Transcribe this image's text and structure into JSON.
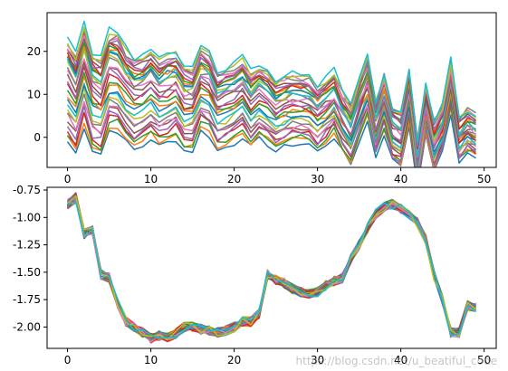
{
  "watermark": "https://blog.csdn.net/u_beatiful_code",
  "palette": [
    "#1f77b4",
    "#ff7f0e",
    "#2ca02c",
    "#d62728",
    "#9467bd",
    "#8c564b",
    "#e377c2",
    "#7f7f7f",
    "#bcbd22",
    "#17becf"
  ],
  "chart_data": [
    {
      "type": "line",
      "title": "",
      "xlabel": "",
      "ylabel": "",
      "xlim": [
        -2.45,
        51.45
      ],
      "ylim": [
        -7,
        29
      ],
      "xticks": [
        0,
        10,
        20,
        30,
        40,
        50
      ],
      "yticks": [
        0,
        10,
        20
      ],
      "grid": false,
      "legend": "none",
      "series_count": 30,
      "x": [
        0,
        1,
        2,
        3,
        4,
        5,
        6,
        7,
        8,
        9,
        10,
        11,
        12,
        13,
        14,
        15,
        16,
        17,
        18,
        19,
        20,
        21,
        22,
        23,
        24,
        25,
        26,
        27,
        28,
        29,
        30,
        31,
        32,
        33,
        34,
        35,
        36,
        37,
        38,
        39,
        40,
        41,
        42,
        43,
        44,
        45,
        46,
        47,
        48,
        49
      ],
      "pattern": [
        0,
        -3,
        4,
        -2,
        -3,
        3,
        3,
        0,
        -2,
        -1,
        1,
        -1,
        0,
        1,
        -2,
        -2,
        3,
        2,
        -2,
        -1,
        0,
        2,
        -1,
        1,
        0,
        -2,
        -1,
        0,
        0,
        0,
        -2,
        0,
        2,
        -2,
        -5,
        1,
        5,
        -4,
        2,
        -4,
        -5,
        5,
        -6,
        -3,
        -4,
        0,
        1,
        -2,
        -2,
        -2
      ],
      "peaks": [
        0,
        -3,
        4,
        -2,
        -3,
        3,
        3,
        0,
        -2,
        -1,
        1,
        -1,
        0,
        1,
        -2,
        -2,
        3,
        2,
        -2,
        -1,
        0,
        2,
        -1,
        1,
        0,
        -2,
        -1,
        0,
        0,
        0,
        -2,
        0,
        2,
        -2,
        -5,
        1,
        6,
        -3,
        3,
        -4,
        -5,
        5,
        -10,
        2,
        -6,
        -2,
        8,
        -4,
        -2,
        -3
      ],
      "offsets_start": [
        -1,
        0,
        1,
        2,
        3,
        4,
        5,
        6,
        7,
        8,
        9,
        10,
        11,
        12,
        13,
        14,
        15,
        16,
        17,
        17.5,
        18,
        18.5,
        19,
        19.5,
        20,
        20.5,
        21,
        21.5,
        22,
        23
      ],
      "offsets_end": [
        -2,
        -1,
        -0.5,
        0,
        0,
        0.5,
        1,
        1,
        1.5,
        2,
        2,
        2.5,
        3,
        3,
        3.5,
        4,
        4,
        4.5,
        5,
        5,
        5.5,
        6,
        6,
        6.5,
        7,
        7,
        7.5,
        8,
        8,
        8.5
      ]
    },
    {
      "type": "line",
      "title": "",
      "xlabel": "",
      "ylabel": "",
      "xlim": [
        -2.45,
        51.45
      ],
      "ylim": [
        -2.195,
        -0.725
      ],
      "xticks": [
        0,
        10,
        20,
        30,
        40,
        50
      ],
      "yticks": [
        -0.75,
        -1.0,
        -1.25,
        -1.5,
        -1.75,
        -2.0
      ],
      "ytick_labels": [
        "-0.75",
        "-1.00",
        "-1.25",
        "-1.50",
        "-1.75",
        "-2.00"
      ],
      "grid": false,
      "legend": "none",
      "series_count": 30,
      "x": [
        0,
        1,
        2,
        3,
        4,
        5,
        6,
        7,
        8,
        9,
        10,
        11,
        12,
        13,
        14,
        15,
        16,
        17,
        18,
        19,
        20,
        21,
        22,
        23,
        24,
        25,
        26,
        27,
        28,
        29,
        30,
        31,
        32,
        33,
        34,
        35,
        36,
        37,
        38,
        39,
        40,
        41,
        42,
        43,
        44,
        45,
        46,
        47,
        48,
        49
      ],
      "base": [
        -0.88,
        -0.82,
        -1.15,
        -1.12,
        -1.52,
        -1.55,
        -1.78,
        -1.95,
        -2.0,
        -2.05,
        -2.1,
        -2.08,
        -2.1,
        -2.06,
        -2.0,
        -2.0,
        -2.02,
        -2.03,
        -2.05,
        -2.03,
        -2.0,
        -1.95,
        -1.95,
        -1.88,
        -1.52,
        -1.57,
        -1.6,
        -1.65,
        -1.68,
        -1.7,
        -1.68,
        -1.62,
        -1.58,
        -1.55,
        -1.38,
        -1.25,
        -1.1,
        -0.97,
        -0.9,
        -0.88,
        -0.92,
        -0.98,
        -1.05,
        -1.2,
        -1.53,
        -1.75,
        -2.05,
        -2.05,
        -1.8,
        -1.82
      ],
      "jitter": 0.045
    }
  ]
}
